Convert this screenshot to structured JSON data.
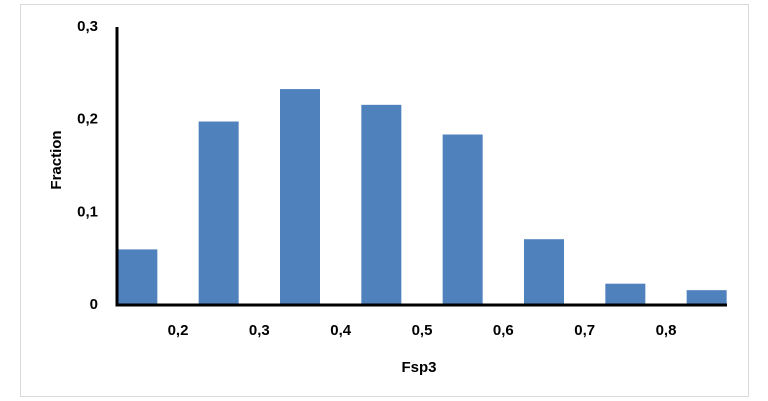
{
  "chart_data": {
    "type": "bar",
    "x_label": "Fsp3",
    "y_label": "Fraction",
    "x": [
      0.15,
      0.25,
      0.35,
      0.45,
      0.55,
      0.65,
      0.75,
      0.85
    ],
    "values": [
      0.06,
      0.198,
      0.233,
      0.216,
      0.184,
      0.071,
      0.023,
      0.016
    ],
    "color": "#4f81bd",
    "xlim": [
      0.125,
      0.875
    ],
    "xticks": [
      {
        "value": 0.2,
        "label": "0,2"
      },
      {
        "value": 0.3,
        "label": "0,3"
      },
      {
        "value": 0.4,
        "label": "0,4"
      },
      {
        "value": 0.5,
        "label": "0,5"
      },
      {
        "value": 0.6,
        "label": "0,6"
      },
      {
        "value": 0.7,
        "label": "0,7"
      },
      {
        "value": 0.8,
        "label": "0,8"
      }
    ],
    "ylim": [
      0,
      0.3
    ],
    "yticks": [
      0,
      {
        "value": 0.1,
        "label": "0,1"
      },
      {
        "value": 0.2,
        "label": "0,2"
      },
      {
        "value": 0.3,
        "label": "0,3"
      }
    ],
    "grid": false
  }
}
